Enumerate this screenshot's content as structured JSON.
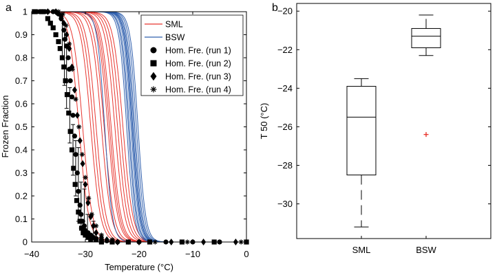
{
  "chart_data": [
    {
      "panel_label": "a",
      "type": "line",
      "xlabel": "Temperature (°C)",
      "ylabel": "Frozen Fraction",
      "xlim": [
        -40,
        0
      ],
      "ylim": [
        0,
        1
      ],
      "xticks": [
        -40,
        -30,
        -20,
        -10,
        0
      ],
      "yticks": [
        0,
        0.1,
        0.2,
        0.3,
        0.4,
        0.5,
        0.6,
        0.7,
        0.8,
        0.9,
        1
      ],
      "legend_position": "top-right",
      "legend": [
        {
          "label": "SML",
          "kind": "line",
          "color": "#e8352e"
        },
        {
          "label": "BSW",
          "kind": "line",
          "color": "#2f5fad"
        },
        {
          "label": "Hom. Fre. (run 1)",
          "kind": "marker",
          "marker": "circle"
        },
        {
          "label": "Hom. Fre. (run 2)",
          "kind": "marker",
          "marker": "square"
        },
        {
          "label": "Hom. Fre. (run 3)",
          "kind": "marker",
          "marker": "diamond"
        },
        {
          "label": "Hom. Fre. (run 4)",
          "kind": "marker",
          "marker": "asterisk"
        }
      ],
      "sml_color": "#e8352e",
      "bsw_color": "#2f5fad",
      "sml_curves_t50": [
        -31.2,
        -30.5,
        -29.0,
        -28.5,
        -27.0,
        -25.8,
        -25.5,
        -25.2,
        -24.5,
        -24.0,
        -23.5,
        -23.0,
        -28.0,
        -26.5
      ],
      "bsw_curves_t50": [
        -22.3,
        -22.0,
        -21.8,
        -21.5,
        -21.3,
        -21.2,
        -21.0,
        -20.8,
        -20.5,
        -20.2,
        -26.4
      ],
      "hom_runs": [
        {
          "name": "Hom. Fre. (run 1)",
          "marker": "circle",
          "x": [
            -39,
            -38.5,
            -38,
            -37.5,
            -37,
            -36,
            -35.5,
            -35,
            -34.5,
            -34,
            -33.8,
            -33.5,
            -33.2,
            -33,
            -32.8,
            -32.5,
            -32.3,
            -32,
            -31.8,
            -31.5,
            -31.3,
            -31,
            -30.8,
            -30.5,
            -30.2,
            -30,
            -29.5,
            -29,
            -28.5,
            -28,
            -27,
            -26,
            -25,
            -24,
            -22,
            -20,
            -15,
            -10,
            -5,
            0
          ],
          "y": [
            1,
            1,
            1,
            1,
            1,
            1,
            1,
            0.99,
            0.97,
            0.92,
            0.88,
            0.85,
            0.8,
            0.75,
            0.7,
            0.63,
            0.55,
            0.46,
            0.38,
            0.3,
            0.22,
            0.16,
            0.12,
            0.09,
            0.07,
            0.05,
            0.04,
            0.03,
            0.02,
            0.015,
            0.01,
            0.005,
            0.005,
            0,
            0,
            0,
            0,
            0,
            0,
            0
          ]
        },
        {
          "name": "Hom. Fre. (run 2)",
          "marker": "square",
          "x": [
            -39.5,
            -38,
            -37,
            -36.5,
            -36,
            -35.5,
            -35,
            -34.7,
            -34.3,
            -34,
            -33.7,
            -33.4,
            -33.1,
            -32.8,
            -32.5,
            -32.2,
            -31.9,
            -31.6,
            -31.3,
            -31,
            -30.7,
            -30.4,
            -30,
            -29.5,
            -29,
            -28,
            -27,
            -25,
            -22,
            -18,
            -12,
            -6,
            0
          ],
          "y": [
            1,
            1,
            0.97,
            0.95,
            0.93,
            0.9,
            0.87,
            0.84,
            0.8,
            0.76,
            0.7,
            0.64,
            0.56,
            0.48,
            0.4,
            0.32,
            0.25,
            0.18,
            0.13,
            0.09,
            0.06,
            0.04,
            0.03,
            0.02,
            0.01,
            0.01,
            0,
            0,
            0,
            0,
            0,
            0,
            0
          ]
        },
        {
          "name": "Hom. Fre. (run 3)",
          "marker": "diamond",
          "x": [
            -37,
            -35.5,
            -34.5,
            -34,
            -33.5,
            -33,
            -32.5,
            -32,
            -31.5,
            -31,
            -30.5,
            -30,
            -29.5,
            -29,
            -28.5,
            -28,
            -27,
            -26,
            -24,
            -20,
            -14,
            -8,
            -2
          ],
          "y": [
            1,
            1,
            0.98,
            0.95,
            0.9,
            0.84,
            0.76,
            0.66,
            0.55,
            0.44,
            0.34,
            0.25,
            0.17,
            0.11,
            0.07,
            0.04,
            0.02,
            0.01,
            0,
            0,
            0,
            0,
            0
          ]
        },
        {
          "name": "Hom. Fre. (run 4)",
          "marker": "asterisk",
          "x": [
            -35,
            -34.2,
            -33.6,
            -33,
            -32.4,
            -31.8,
            -31.2,
            -30.6,
            -30,
            -29.4,
            -28.8,
            -28,
            -27,
            -25,
            -22,
            -17,
            -11,
            -5,
            -1
          ],
          "y": [
            1,
            0.99,
            0.94,
            0.86,
            0.75,
            0.62,
            0.5,
            0.38,
            0.28,
            0.19,
            0.12,
            0.07,
            0.03,
            0.01,
            0,
            0,
            0,
            0,
            0
          ]
        }
      ],
      "error_bars": [
        {
          "x": -34.3,
          "y": 0.88,
          "err": 0.08
        },
        {
          "x": -33.9,
          "y": 0.8,
          "err": 0.12
        },
        {
          "x": -33.5,
          "y": 0.72,
          "err": 0.14
        },
        {
          "x": -32.9,
          "y": 0.55,
          "err": 0.12
        },
        {
          "x": -32.3,
          "y": 0.4,
          "err": 0.11
        },
        {
          "x": -31.8,
          "y": 0.32,
          "err": 0.12
        },
        {
          "x": -31.3,
          "y": 0.25,
          "err": 0.16
        },
        {
          "x": -30.8,
          "y": 0.16,
          "err": 0.1
        },
        {
          "x": -30.2,
          "y": 0.13,
          "err": 0.1
        },
        {
          "x": -29.6,
          "y": 0.07,
          "err": 0.05
        },
        {
          "x": -28.5,
          "y": 0.05,
          "err": 0.04
        }
      ]
    },
    {
      "panel_label": "b",
      "type": "box",
      "ylabel": "T 50 (°C)",
      "categories": [
        "SML",
        "BSW"
      ],
      "ylim": [
        -31.8,
        -19.6
      ],
      "yticks": [
        -30,
        -28,
        -26,
        -24,
        -22,
        -20
      ],
      "box_color": "#000000",
      "outlier_color": "#e8352e",
      "boxes": [
        {
          "name": "SML",
          "whisker_low": -31.2,
          "q1": -28.5,
          "median": -25.5,
          "q3": -23.9,
          "whisker_high": -23.5,
          "outliers": []
        },
        {
          "name": "BSW",
          "whisker_low": -22.3,
          "q1": -21.9,
          "median": -21.3,
          "q3": -20.9,
          "whisker_high": -20.2,
          "outliers": [
            -26.4
          ]
        }
      ]
    }
  ]
}
